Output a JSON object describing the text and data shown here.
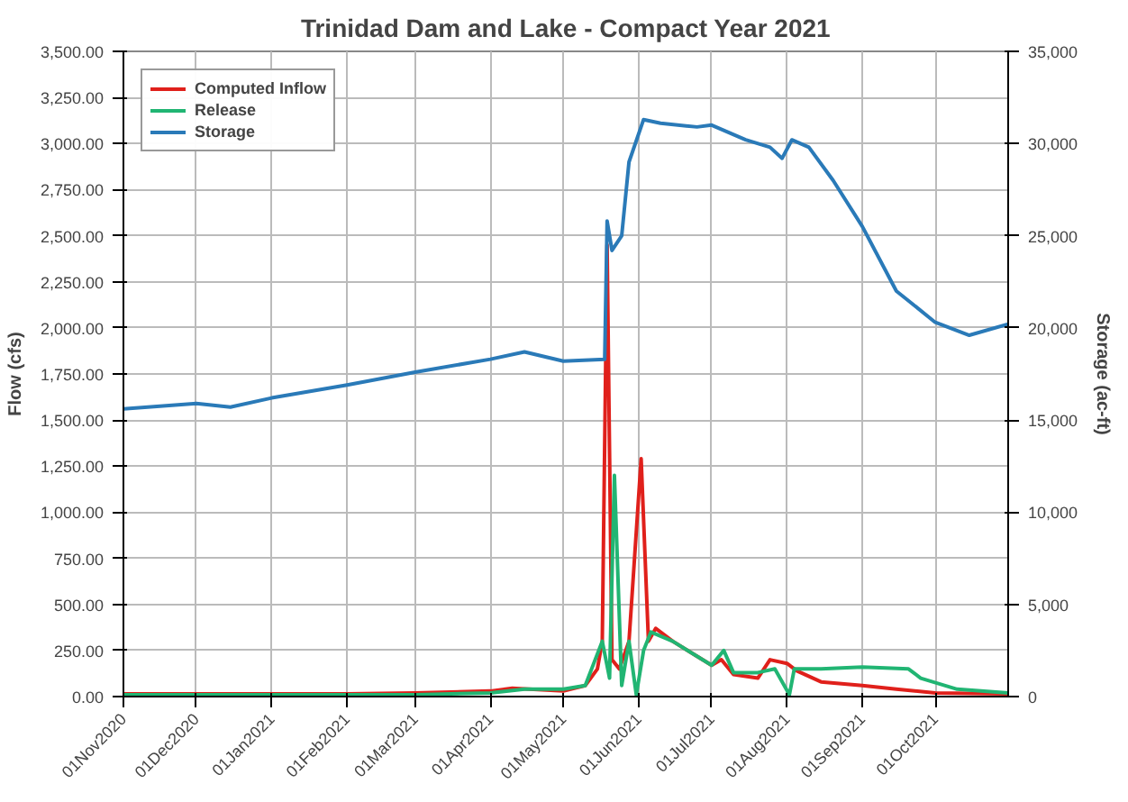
{
  "chart_data": {
    "type": "line",
    "title": "Trinidad Dam and Lake - Compact Year 2021",
    "ylabel": "Flow (cfs)",
    "y2label": "Storage (ac-ft)",
    "xlim": [
      "2020-11-01",
      "2021-10-31"
    ],
    "xticks": [
      {
        "value": "2020-11-01",
        "label": "01Nov2020"
      },
      {
        "value": "2020-12-01",
        "label": "01Dec2020"
      },
      {
        "value": "2021-01-01",
        "label": "01Jan2021"
      },
      {
        "value": "2021-02-01",
        "label": "01Feb2021"
      },
      {
        "value": "2021-03-01",
        "label": "01Mar2021"
      },
      {
        "value": "2021-04-01",
        "label": "01Apr2021"
      },
      {
        "value": "2021-05-01",
        "label": "01May2021"
      },
      {
        "value": "2021-06-01",
        "label": "01Jun2021"
      },
      {
        "value": "2021-07-01",
        "label": "01Jul2021"
      },
      {
        "value": "2021-08-01",
        "label": "01Aug2021"
      },
      {
        "value": "2021-09-01",
        "label": "01Sep2021"
      },
      {
        "value": "2021-10-01",
        "label": "01Oct2021"
      }
    ],
    "ylim": [
      0,
      3500
    ],
    "yticks": [
      {
        "value": 0,
        "label": "0.00"
      },
      {
        "value": 250,
        "label": "250.00"
      },
      {
        "value": 500,
        "label": "500.00"
      },
      {
        "value": 750,
        "label": "750.00"
      },
      {
        "value": 1000,
        "label": "1,000.00"
      },
      {
        "value": 1250,
        "label": "1,250.00"
      },
      {
        "value": 1500,
        "label": "1,500.00"
      },
      {
        "value": 1750,
        "label": "1,750.00"
      },
      {
        "value": 2000,
        "label": "2,000.00"
      },
      {
        "value": 2250,
        "label": "2,250.00"
      },
      {
        "value": 2500,
        "label": "2,500.00"
      },
      {
        "value": 2750,
        "label": "2,750.00"
      },
      {
        "value": 3000,
        "label": "3,000.00"
      },
      {
        "value": 3250,
        "label": "3,250.00"
      },
      {
        "value": 3500,
        "label": "3,500.00"
      }
    ],
    "y2lim": [
      0,
      35000
    ],
    "y2ticks": [
      0,
      {
        "value": 5000,
        "label": "5,000"
      },
      {
        "value": 10000,
        "label": "10,000"
      },
      {
        "value": 15000,
        "label": "15,000"
      },
      {
        "value": 20000,
        "label": "20,000"
      },
      {
        "value": 25000,
        "label": "25,000"
      },
      {
        "value": 30000,
        "label": "30,000"
      },
      {
        "value": 35000,
        "label": "35,000"
      }
    ],
    "grid": true,
    "legend": "top left",
    "marker": "none",
    "line_style": "solid",
    "series": [
      {
        "name": "Computed Inflow",
        "color": "#e0201b",
        "x": [
          "2020-11-01",
          "2020-12-01",
          "2021-01-01",
          "2021-02-01",
          "2021-03-01",
          "2021-04-01",
          "2021-04-10",
          "2021-05-01",
          "2021-05-10",
          "2021-05-15",
          "2021-05-17",
          "2021-05-19",
          "2021-05-21",
          "2021-05-24",
          "2021-05-28",
          "2021-06-02",
          "2021-06-05",
          "2021-06-08",
          "2021-06-15",
          "2021-07-01",
          "2021-07-05",
          "2021-07-10",
          "2021-07-20",
          "2021-07-25",
          "2021-08-01",
          "2021-08-05",
          "2021-08-15",
          "2021-09-01",
          "2021-09-15",
          "2021-10-01",
          "2021-10-31"
        ],
        "values": [
          15,
          15,
          15,
          15,
          20,
          30,
          45,
          30,
          60,
          150,
          300,
          2450,
          200,
          150,
          300,
          1290,
          300,
          370,
          300,
          170,
          200,
          120,
          100,
          200,
          180,
          140,
          80,
          60,
          40,
          20,
          15
        ]
      },
      {
        "name": "Release",
        "color": "#21b573",
        "x": [
          "2020-11-01",
          "2020-12-01",
          "2021-01-01",
          "2021-02-01",
          "2021-03-01",
          "2021-04-01",
          "2021-04-15",
          "2021-05-01",
          "2021-05-10",
          "2021-05-17",
          "2021-05-20",
          "2021-05-22",
          "2021-05-25",
          "2021-05-28",
          "2021-05-31",
          "2021-06-03",
          "2021-06-06",
          "2021-06-15",
          "2021-07-01",
          "2021-07-06",
          "2021-07-10",
          "2021-07-20",
          "2021-07-27",
          "2021-08-02",
          "2021-08-04",
          "2021-08-15",
          "2021-09-01",
          "2021-09-20",
          "2021-09-25",
          "2021-10-10",
          "2021-10-31"
        ],
        "values": [
          10,
          10,
          10,
          10,
          10,
          20,
          40,
          40,
          60,
          300,
          100,
          1200,
          60,
          300,
          10,
          250,
          350,
          300,
          170,
          250,
          130,
          130,
          150,
          10,
          150,
          150,
          160,
          150,
          100,
          40,
          20
        ]
      },
      {
        "name": "Storage",
        "color": "#2a7ab8",
        "axis": "y2",
        "x": [
          "2020-11-01",
          "2020-12-01",
          "2020-12-15",
          "2021-01-01",
          "2021-02-01",
          "2021-03-01",
          "2021-04-01",
          "2021-04-15",
          "2021-05-01",
          "2021-05-18",
          "2021-05-19",
          "2021-05-21",
          "2021-05-25",
          "2021-05-28",
          "2021-06-03",
          "2021-06-10",
          "2021-06-25",
          "2021-07-01",
          "2021-07-15",
          "2021-07-25",
          "2021-07-30",
          "2021-08-03",
          "2021-08-10",
          "2021-08-20",
          "2021-09-01",
          "2021-09-15",
          "2021-10-01",
          "2021-10-15",
          "2021-10-31"
        ],
        "values": [
          15600,
          15900,
          15700,
          16200,
          16900,
          17600,
          18300,
          18700,
          18200,
          18300,
          25800,
          24200,
          25000,
          29000,
          31300,
          31100,
          30900,
          31000,
          30200,
          29800,
          29200,
          30200,
          29800,
          28000,
          25500,
          22000,
          20300,
          19600,
          20200
        ]
      }
    ]
  }
}
